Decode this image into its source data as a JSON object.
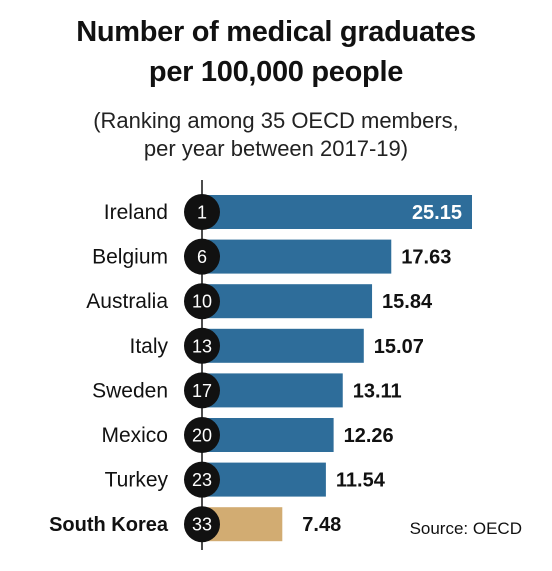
{
  "title_line1": "Number of medical graduates",
  "title_line2": "per 100,000 people",
  "subtitle_line1": "(Ranking among 35 OECD members,",
  "subtitle_line2": "per year between 2017-19)",
  "source": "Source: OECD",
  "colors": {
    "bar": "#2e6d9a",
    "highlight": "#d2ac72",
    "badge": "#111111",
    "axis": "#111111"
  },
  "chart_data": {
    "type": "bar",
    "orientation": "horizontal",
    "title": "Number of medical graduates per 100,000 people",
    "categories": [
      "Ireland",
      "Belgium",
      "Australia",
      "Italy",
      "Sweden",
      "Mexico",
      "Turkey",
      "South Korea"
    ],
    "values": [
      25.15,
      17.63,
      15.84,
      15.07,
      13.11,
      12.26,
      11.54,
      7.48
    ],
    "ranks": [
      "1",
      "6",
      "10",
      "13",
      "17",
      "20",
      "23",
      "33"
    ],
    "highlight": "South Korea",
    "xlim": [
      0,
      25.15
    ],
    "grid": false
  }
}
